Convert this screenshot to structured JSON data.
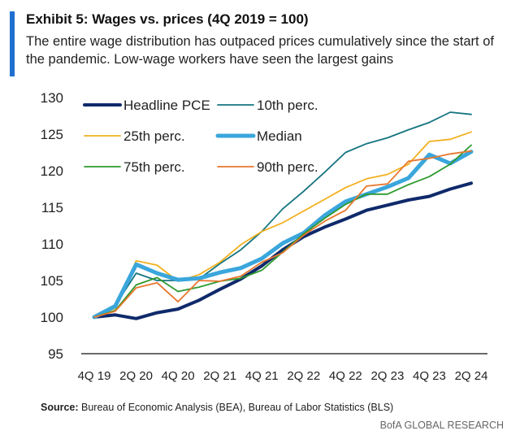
{
  "header": {
    "title": "Exhibit 5: Wages vs. prices (4Q 2019 = 100)",
    "subtitle": "The entire wage distribution has outpaced prices cumulatively since the start of the pandemic. Low-wage workers have seen the largest gains"
  },
  "footer": {
    "source_label": "Source:",
    "source_text": " Bureau of Economic Analysis (BEA), Bureau of Labor Statistics (BLS)",
    "brand": "BofA GLOBAL RESEARCH"
  },
  "colors": {
    "accent": "#1f6fd1"
  },
  "chart_data": {
    "type": "line",
    "title": "Exhibit 5: Wages vs. prices (4Q 2019 = 100)",
    "xlabel": "",
    "ylabel": "",
    "ylim": [
      95,
      130
    ],
    "yticks": [
      95,
      100,
      105,
      110,
      115,
      120,
      125,
      130
    ],
    "grid": false,
    "legend": "top-left",
    "x": [
      "4Q 19",
      "1Q 20",
      "2Q 20",
      "3Q 20",
      "4Q 20",
      "1Q 21",
      "2Q 21",
      "3Q 21",
      "4Q 21",
      "1Q 22",
      "2Q 22",
      "3Q 22",
      "4Q 22",
      "1Q 23",
      "2Q 23",
      "3Q 23",
      "4Q 23",
      "1Q 24",
      "2Q 24"
    ],
    "xtick_labels": [
      "4Q 19",
      "2Q 20",
      "4Q 20",
      "2Q 21",
      "4Q 21",
      "2Q 22",
      "4Q 22",
      "2Q 23",
      "4Q 23",
      "2Q 24"
    ],
    "series": [
      {
        "name": "Headline PCE",
        "color": "#0f2a6b",
        "width": 4,
        "values": [
          100,
          100.3,
          99.8,
          100.6,
          101.1,
          102.3,
          103.8,
          105.2,
          107.0,
          109.2,
          111.0,
          112.3,
          113.4,
          114.6,
          115.3,
          116.0,
          116.5,
          117.5,
          118.3
        ]
      },
      {
        "name": "10th perc.",
        "color": "#157480",
        "width": 1.8,
        "values": [
          100,
          101.6,
          106.0,
          105.0,
          105.0,
          105.2,
          107.3,
          109.2,
          111.7,
          114.8,
          117.2,
          119.8,
          122.5,
          123.7,
          124.5,
          125.6,
          126.6,
          128.0,
          127.7
        ]
      },
      {
        "name": "25th perc.",
        "color": "#f2b01e",
        "width": 1.8,
        "values": [
          100,
          101.2,
          107.7,
          107.1,
          104.9,
          105.8,
          107.5,
          109.9,
          111.7,
          112.9,
          114.5,
          116.1,
          117.7,
          118.9,
          119.5,
          120.9,
          124.0,
          124.3,
          125.3
        ]
      },
      {
        "name": "Median",
        "color": "#3aa6dc",
        "width": 5,
        "values": [
          100,
          101.5,
          107.2,
          106.0,
          105.1,
          105.3,
          106.1,
          106.7,
          108.0,
          110.1,
          111.5,
          113.9,
          115.8,
          116.8,
          117.8,
          119.0,
          122.2,
          121.0,
          122.6
        ]
      },
      {
        "name": "75th perc.",
        "color": "#2e9a2e",
        "width": 1.8,
        "values": [
          100,
          100.9,
          104.4,
          105.4,
          103.5,
          104.1,
          104.9,
          105.3,
          106.4,
          108.9,
          111.4,
          113.5,
          115.4,
          116.8,
          116.8,
          118.1,
          119.2,
          120.9,
          123.5
        ]
      },
      {
        "name": "90th perc.",
        "color": "#e8772e",
        "width": 1.8,
        "values": [
          100,
          100.8,
          104.0,
          104.7,
          102.1,
          105.0,
          104.9,
          105.6,
          107.5,
          108.8,
          111.2,
          113.1,
          114.6,
          117.9,
          118.2,
          121.3,
          121.7,
          122.3,
          122.7
        ]
      }
    ]
  }
}
